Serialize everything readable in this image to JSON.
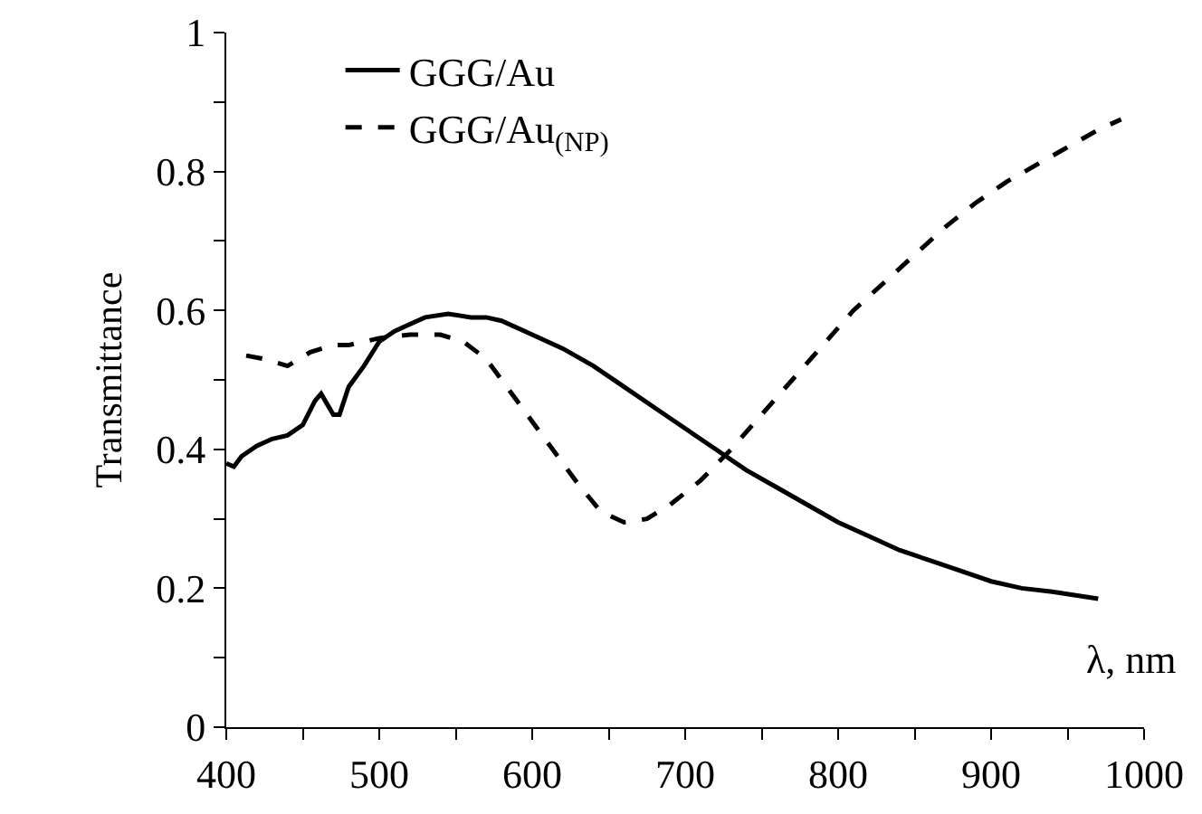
{
  "chart_data": {
    "type": "line",
    "xlabel": "λ, nm",
    "ylabel": "Transmittance",
    "xlim": [
      400,
      1000
    ],
    "ylim": [
      0,
      1
    ],
    "xticks": [
      400,
      {
        "value": 450,
        "label": null
      },
      500,
      {
        "value": 550,
        "label": null
      },
      600,
      {
        "value": 650,
        "label": null
      },
      700,
      {
        "value": 750,
        "label": null
      },
      800,
      {
        "value": 850,
        "label": null
      },
      900,
      {
        "value": 950,
        "label": null
      },
      1000
    ],
    "yticks": [
      0,
      {
        "value": 0.1,
        "label": null
      },
      0.2,
      {
        "value": 0.3,
        "label": null
      },
      0.4,
      {
        "value": 0.5,
        "label": null
      },
      0.6,
      {
        "value": 0.7,
        "label": null
      },
      0.8,
      {
        "value": 0.9,
        "label": null
      },
      1
    ],
    "grid": false,
    "legend": "top left",
    "marker": "none",
    "series": [
      {
        "name": "GGG/Au",
        "color": "#000000",
        "line_style": "solid",
        "x": [
          400,
          405,
          410,
          420,
          430,
          440,
          450,
          458,
          462,
          470,
          474,
          480,
          490,
          500,
          510,
          520,
          530,
          545,
          560,
          570,
          580,
          600,
          620,
          640,
          660,
          680,
          700,
          720,
          740,
          760,
          780,
          800,
          820,
          840,
          860,
          880,
          900,
          920,
          940,
          970
        ],
        "values": [
          0.38,
          0.375,
          0.39,
          0.405,
          0.415,
          0.42,
          0.435,
          0.47,
          0.48,
          0.45,
          0.45,
          0.49,
          0.52,
          0.555,
          0.57,
          0.58,
          0.59,
          0.595,
          0.59,
          0.59,
          0.585,
          0.565,
          0.545,
          0.52,
          0.49,
          0.46,
          0.43,
          0.4,
          0.37,
          0.345,
          0.32,
          0.295,
          0.275,
          0.255,
          0.24,
          0.225,
          0.21,
          0.2,
          0.195,
          0.185
        ]
      },
      {
        "name": "GGG/Au$_{(NP)}$",
        "color": "#000000",
        "line_style": "dashed",
        "x": [
          413,
          425,
          440,
          455,
          470,
          480,
          490,
          500,
          520,
          540,
          555,
          570,
          590,
          610,
          630,
          645,
          660,
          675,
          690,
          710,
          730,
          750,
          770,
          790,
          810,
          830,
          850,
          870,
          890,
          910,
          930,
          950,
          970,
          985
        ],
        "values": [
          0.535,
          0.53,
          0.52,
          0.54,
          0.55,
          0.55,
          0.555,
          0.56,
          0.565,
          0.565,
          0.555,
          0.53,
          0.47,
          0.41,
          0.35,
          0.31,
          0.295,
          0.3,
          0.32,
          0.355,
          0.4,
          0.45,
          0.5,
          0.55,
          0.6,
          0.64,
          0.68,
          0.72,
          0.755,
          0.785,
          0.81,
          0.835,
          0.86,
          0.875
        ]
      }
    ]
  }
}
